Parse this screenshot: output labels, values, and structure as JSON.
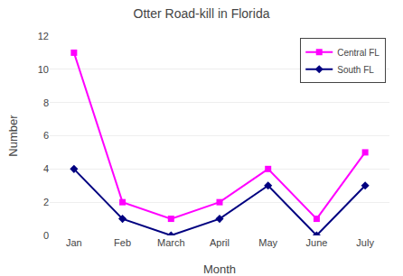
{
  "chart_data": {
    "type": "line",
    "title": "Otter Road-kill in Florida",
    "xlabel": "Month",
    "ylabel": "Number",
    "categories": [
      "Jan",
      "Feb",
      "March",
      "April",
      "May",
      "June",
      "July"
    ],
    "series": [
      {
        "name": "Central FL",
        "color": "#ff00ff",
        "marker": "square",
        "values": [
          11,
          2,
          1,
          2,
          4,
          1,
          5
        ]
      },
      {
        "name": "South FL",
        "color": "#000080",
        "marker": "diamond",
        "values": [
          4,
          1,
          0,
          1,
          3,
          0,
          3
        ]
      }
    ],
    "ylim": [
      0,
      12
    ],
    "yticks": [
      0,
      2,
      4,
      6,
      8,
      10,
      12
    ],
    "grid": true,
    "legend": "upper right"
  }
}
